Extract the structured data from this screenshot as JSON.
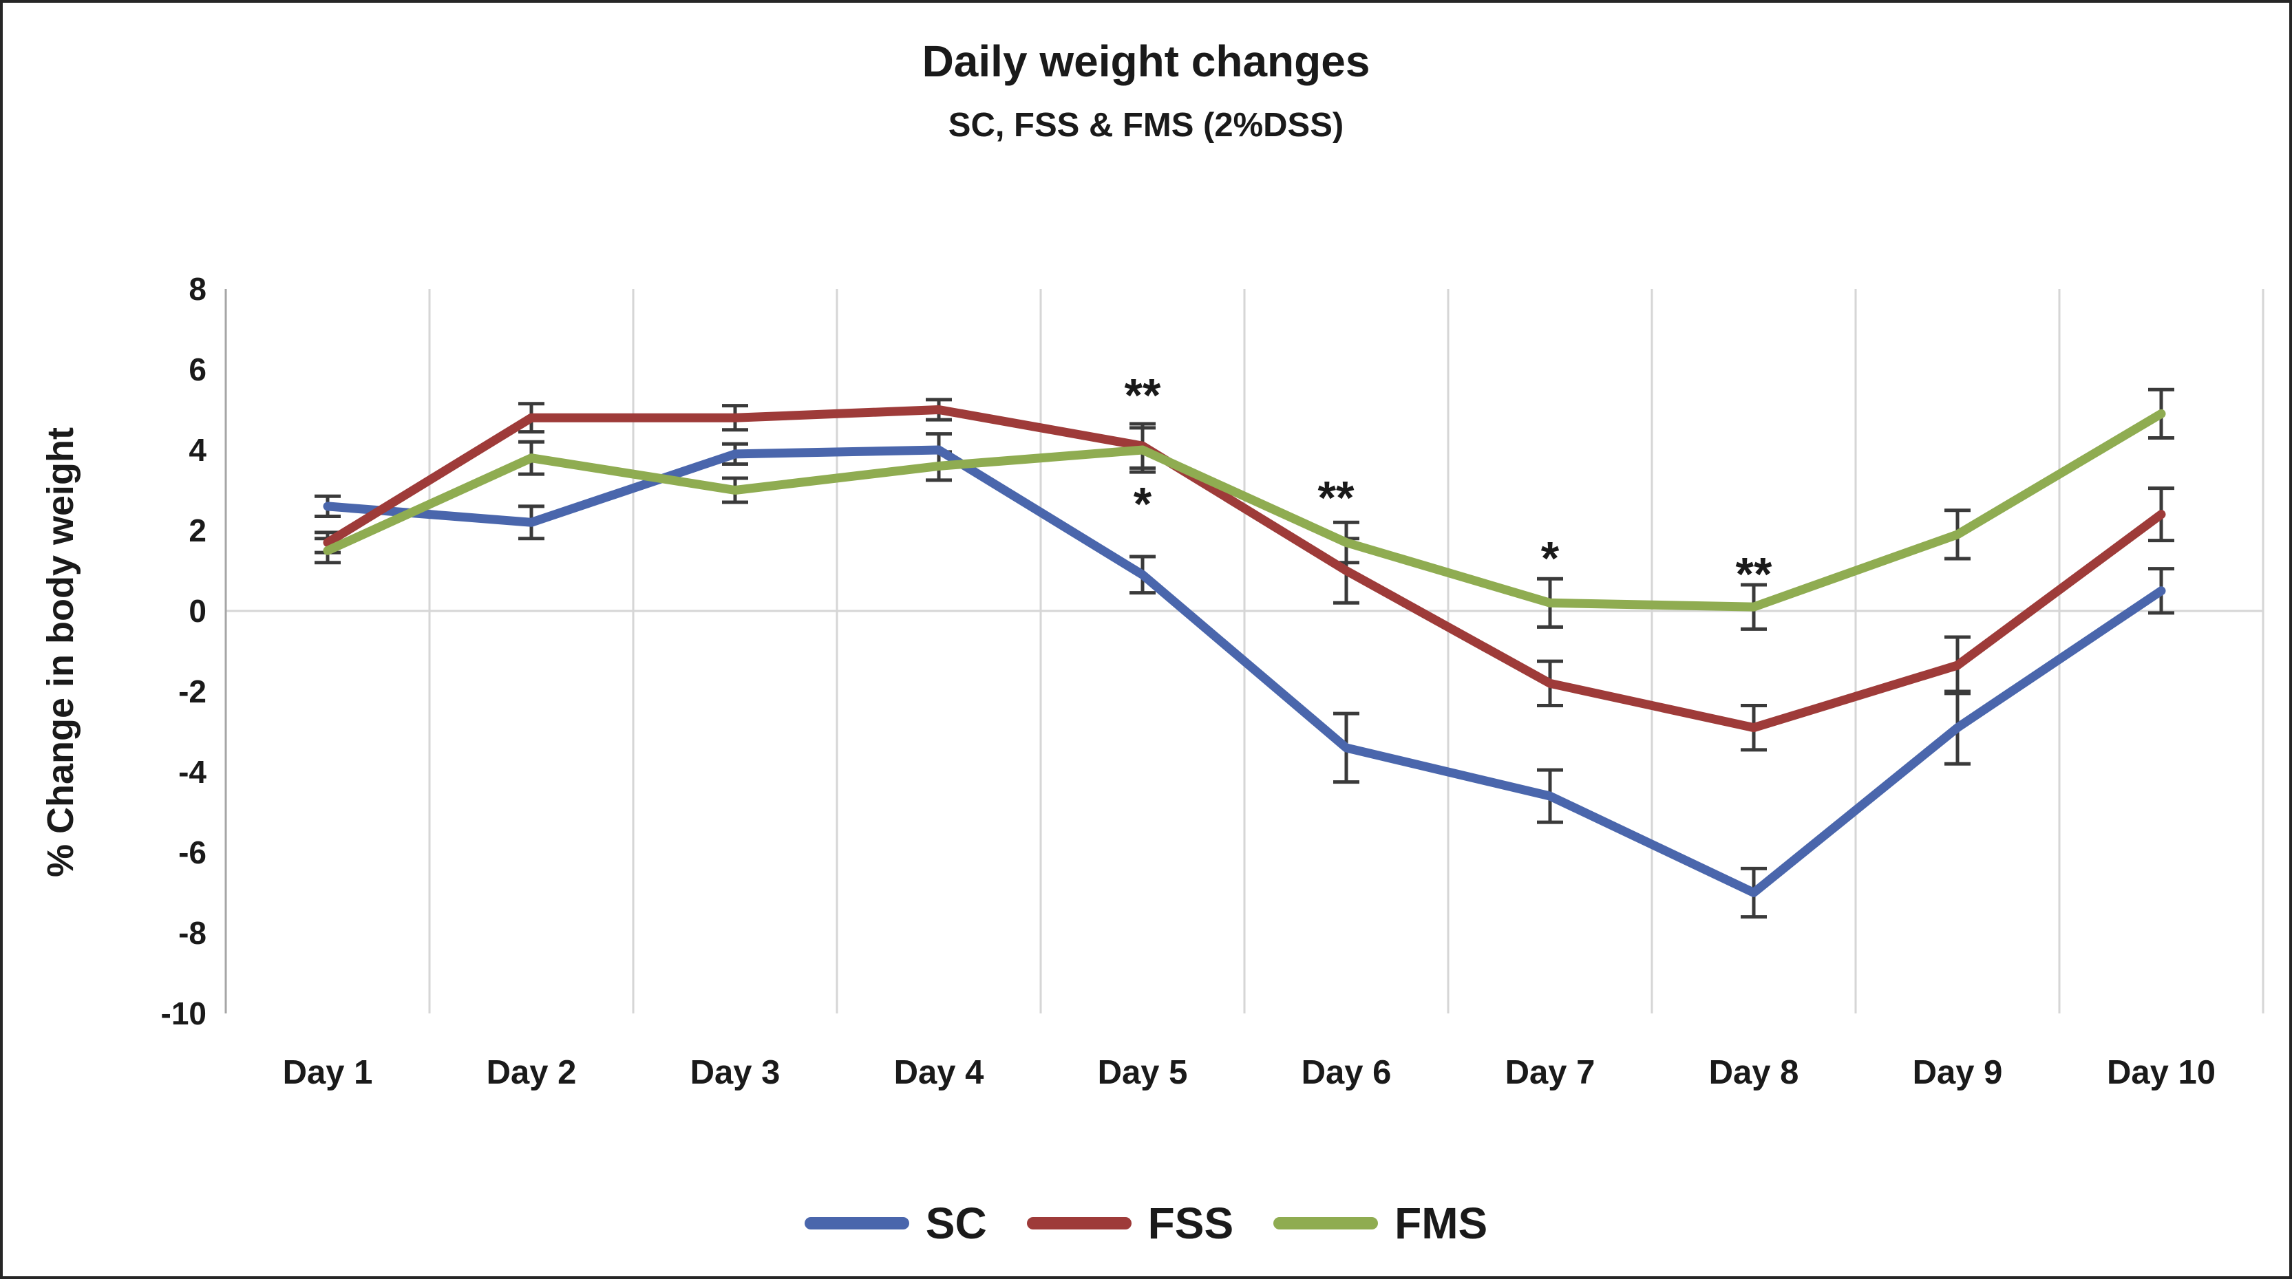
{
  "figure": {
    "border_color": "#262626",
    "background": "#ffffff"
  },
  "chart_data": {
    "type": "line",
    "title": "Daily weight changes",
    "subtitle": "SC, FSS & FMS (2%DSS)",
    "ylabel": "% Change in body weight",
    "categories": [
      "Day 1",
      "Day 2",
      "Day 3",
      "Day 4",
      "Day 5",
      "Day 6",
      "Day 7",
      "Day 8",
      "Day 9",
      "Day 10"
    ],
    "ylim": [
      -10,
      8
    ],
    "yticks": [
      8,
      6,
      4,
      2,
      0,
      -2,
      -4,
      -6,
      -8,
      -10
    ],
    "grid": {
      "vertical": true,
      "horizontal": false,
      "zero_line": true,
      "gridline_color": "#d6d6d6",
      "axis_line_color": "#a6a6a6"
    },
    "error_bar_color": "#3a3a3a",
    "text_color": "#1a1a1a",
    "legend_position": "bottom",
    "series": [
      {
        "name": "SC",
        "color": "#4a66ac",
        "values": [
          2.6,
          2.2,
          3.9,
          4.0,
          0.9,
          -3.4,
          -4.6,
          -7.0,
          -2.9,
          0.5
        ],
        "errors": [
          0.25,
          0.4,
          0.25,
          0.4,
          0.45,
          0.85,
          0.65,
          0.6,
          0.9,
          0.55
        ]
      },
      {
        "name": "FSS",
        "color": "#9e3b39",
        "values": [
          1.7,
          4.8,
          4.8,
          5.0,
          4.1,
          1.0,
          -1.8,
          -2.9,
          -1.35,
          2.4
        ],
        "errors": [
          0.25,
          0.35,
          0.3,
          0.25,
          0.55,
          0.8,
          0.55,
          0.55,
          0.7,
          0.65
        ]
      },
      {
        "name": "FMS",
        "color": "#8fac51",
        "values": [
          1.5,
          3.8,
          3.0,
          3.6,
          4.0,
          1.7,
          0.2,
          0.1,
          1.9,
          4.9
        ],
        "errors": [
          0.3,
          0.4,
          0.3,
          0.35,
          0.55,
          0.5,
          0.6,
          0.55,
          0.6,
          0.6
        ]
      }
    ],
    "annotations": [
      {
        "text": "**",
        "day_index": 4,
        "y": 5.55,
        "dx": 0
      },
      {
        "text": "*",
        "day_index": 4,
        "y": 2.85,
        "dx": 0
      },
      {
        "text": "**",
        "day_index": 5,
        "y": 3.0,
        "dx": -15
      },
      {
        "text": "*",
        "day_index": 6,
        "y": 1.5,
        "dx": 0
      },
      {
        "text": "**",
        "day_index": 7,
        "y": 1.1,
        "dx": 0
      }
    ]
  }
}
